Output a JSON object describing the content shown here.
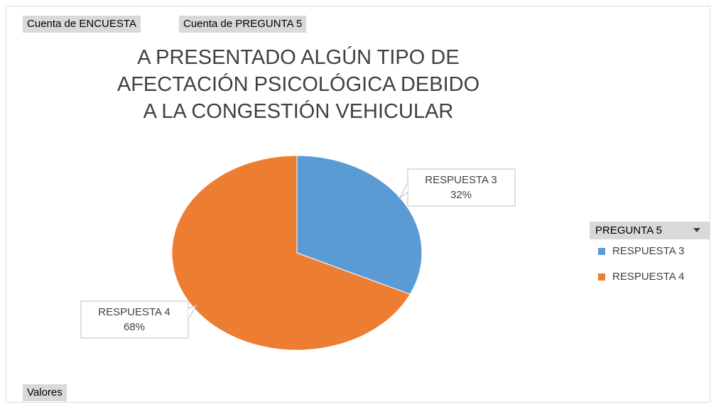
{
  "field_buttons": {
    "values": [
      "Cuenta de ENCUESTA",
      "Cuenta de PREGUNTA 5"
    ],
    "axis": "Valores"
  },
  "chart_data": {
    "type": "pie",
    "title": "A PRESENTADO ALGÚN TIPO DE AFECTACIÓN PSICOLÓGICA DEBIDO A LA CONGESTIÓN VEHICULAR",
    "categories": [
      "RESPUESTA 3",
      "RESPUESTA 4"
    ],
    "values": [
      32,
      68
    ],
    "value_labels": [
      "32%",
      "68%"
    ],
    "colors": [
      "#5b9bd5",
      "#ed7d31"
    ],
    "legend_title": "PREGUNTA 5",
    "legend": "right"
  }
}
